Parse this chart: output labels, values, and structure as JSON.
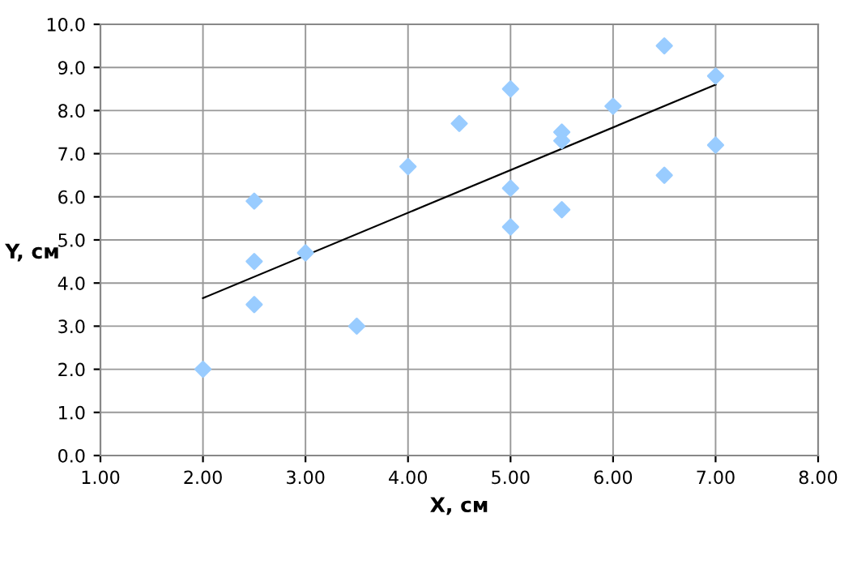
{
  "chart_data": {
    "type": "scatter",
    "xlabel": "X, см",
    "ylabel": "Y, см",
    "series": [
      {
        "color": "#99ccff",
        "marker": "diamond",
        "x": [
          2.0,
          2.5,
          2.5,
          2.5,
          3.0,
          3.5,
          4.0,
          4.5,
          5.0,
          5.0,
          5.0,
          5.5,
          5.5,
          5.5,
          6.0,
          6.5,
          6.5,
          7.0,
          7.0
        ],
        "values": [
          2.0,
          3.5,
          4.5,
          5.9,
          4.7,
          3.0,
          6.7,
          7.7,
          8.5,
          6.2,
          5.3,
          7.5,
          7.3,
          5.7,
          8.1,
          9.5,
          6.5,
          8.8,
          7.2
        ]
      },
      {
        "type": "line",
        "color": "#000000",
        "marker": "none",
        "x": [
          2.0,
          7.0
        ],
        "values": [
          3.65,
          8.6
        ]
      }
    ],
    "xlim": [
      1.0,
      8.0
    ],
    "ylim": [
      0.0,
      10.0
    ],
    "xticks": [
      {
        "value": 1,
        "label": "1.00"
      },
      {
        "value": 2,
        "label": "2.00"
      },
      {
        "value": 3,
        "label": "3.00"
      },
      {
        "value": 4,
        "label": "4.00"
      },
      {
        "value": 5,
        "label": "5.00"
      },
      {
        "value": 6,
        "label": "6.00"
      },
      {
        "value": 7,
        "label": "7.00"
      },
      {
        "value": 8,
        "label": "8.00"
      }
    ],
    "yticks": [
      {
        "value": 0,
        "label": "0.0"
      },
      {
        "value": 1,
        "label": "1.0"
      },
      {
        "value": 2,
        "label": "2.0"
      },
      {
        "value": 3,
        "label": "3.0"
      },
      {
        "value": 4,
        "label": "4.0"
      },
      {
        "value": 5,
        "label": "5.0"
      },
      {
        "value": 6,
        "label": "6.0"
      },
      {
        "value": 7,
        "label": "7.0"
      },
      {
        "value": 8,
        "label": "8.0"
      },
      {
        "value": 9,
        "label": "9.0"
      },
      {
        "value": 10,
        "label": "10.0"
      }
    ],
    "grid": true
  }
}
